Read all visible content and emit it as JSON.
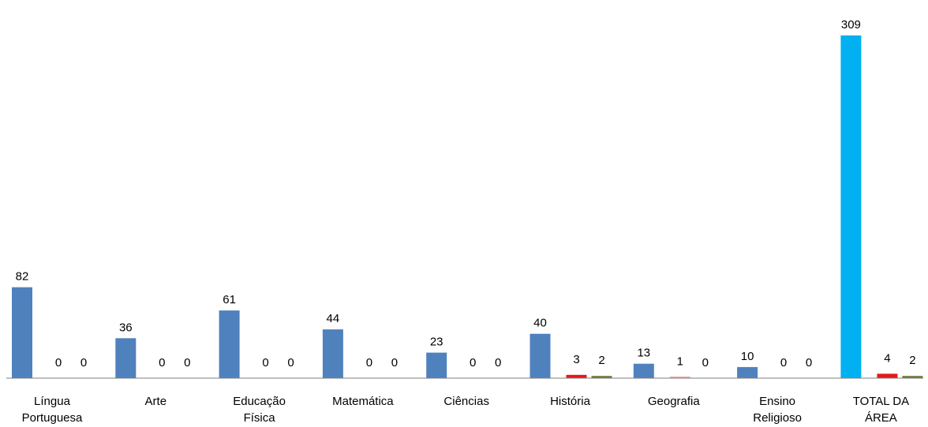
{
  "chart_data": {
    "type": "bar",
    "title": "",
    "xlabel": "",
    "ylabel": "",
    "ylim": [
      0,
      309
    ],
    "grid": false,
    "legend": "none",
    "categories": [
      [
        "Língua",
        "Portuguesa"
      ],
      [
        "Arte"
      ],
      [
        "Educação",
        "Física"
      ],
      [
        "Matemática"
      ],
      [
        "Ciências"
      ],
      [
        "História"
      ],
      [
        "Geografia"
      ],
      [
        "Ensino",
        "Religioso"
      ],
      [
        "TOTAL DA",
        "ÁREA"
      ]
    ],
    "series": [
      {
        "values": [
          82,
          36,
          61,
          44,
          23,
          40,
          13,
          10,
          309
        ]
      },
      {
        "values": [
          0,
          0,
          0,
          0,
          0,
          3,
          1,
          0,
          4
        ]
      },
      {
        "values": [
          0,
          0,
          0,
          0,
          0,
          2,
          0,
          0,
          2
        ]
      }
    ],
    "colors": {
      "series": [
        "#4F81BD",
        "#E31A1C",
        "#6B7A3B"
      ],
      "total_highlight": "#00B0F0",
      "geografia_series2": "#F4A6A6",
      "axis": "#7F7F7F"
    }
  }
}
